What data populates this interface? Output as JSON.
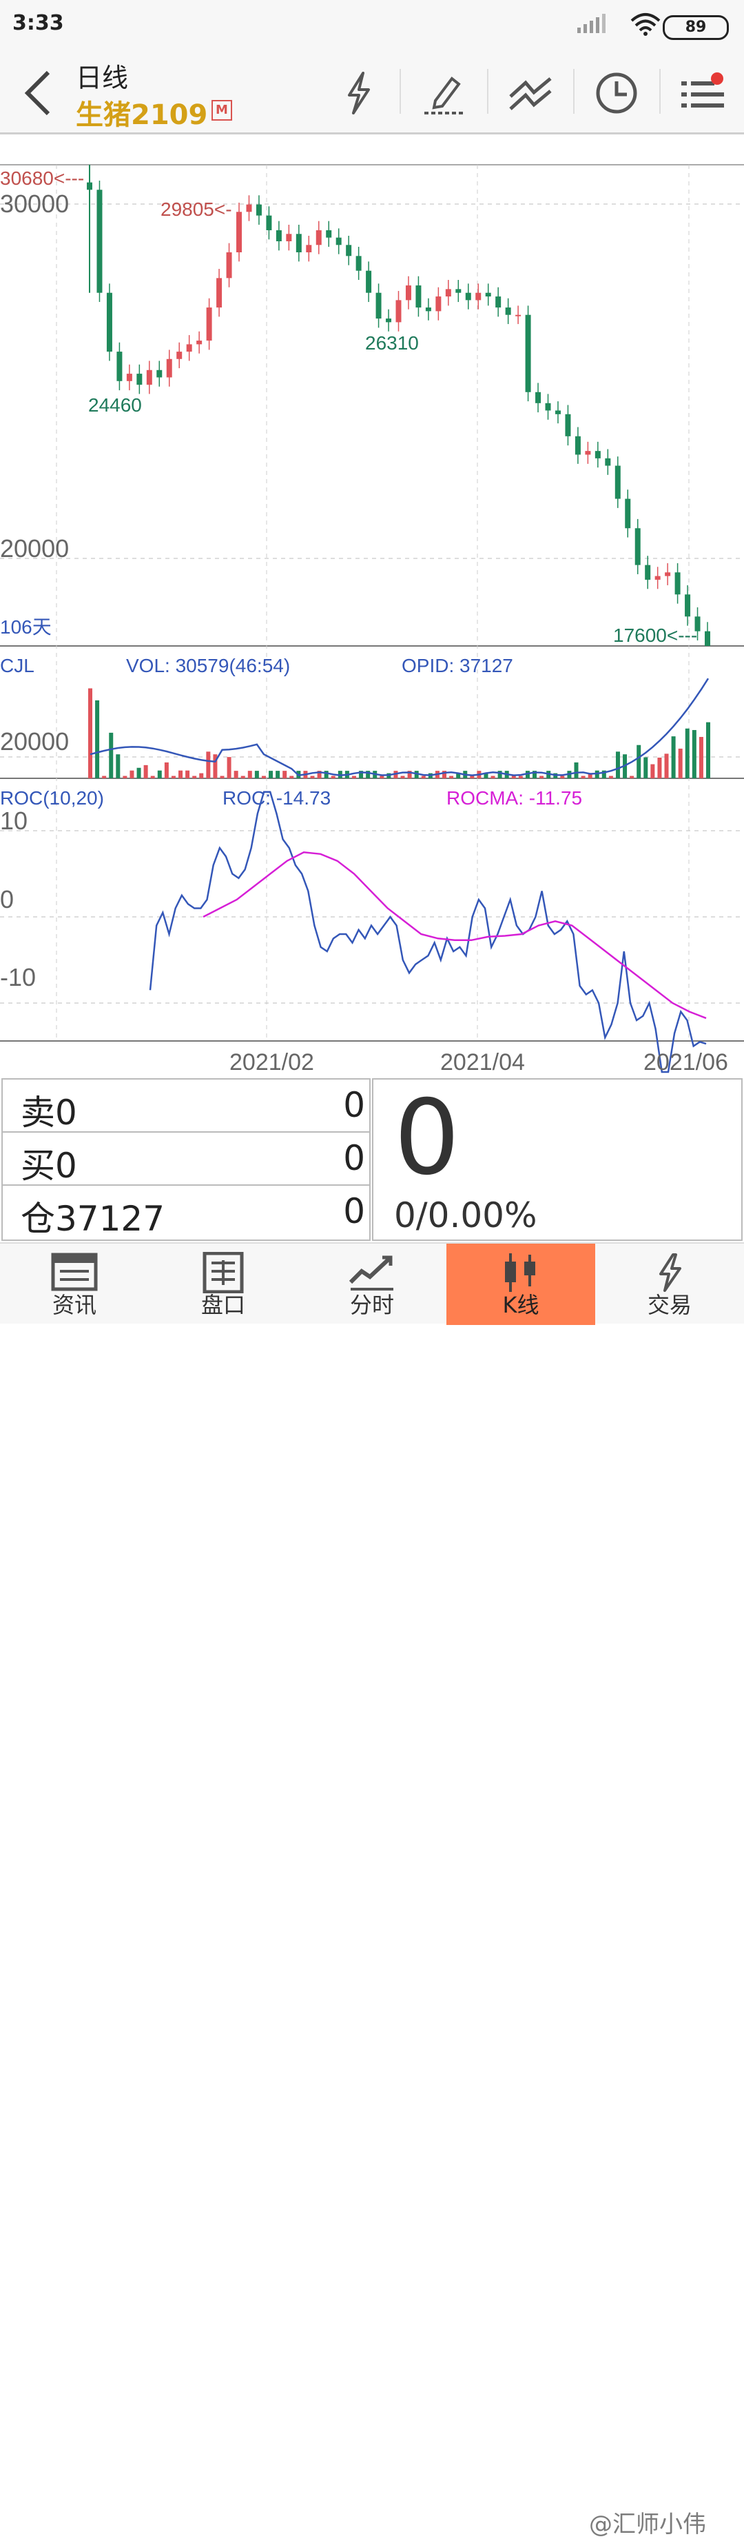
{
  "status": {
    "time": "3:33",
    "battery": "89"
  },
  "nav": {
    "title": "日线",
    "symbol": "生猪2109",
    "badge": "M"
  },
  "chart": {
    "top_marker_label": "30680<---",
    "y_label_30000": "30000",
    "y_label_20000": "20000",
    "peak_label": "29805<-",
    "low1_label": "24460",
    "low2_label": "26310",
    "bottom_marker_label": "17600<---",
    "days_label": "106天",
    "vol_title": "CJL",
    "vol_value": "VOL: 30579(46:54)",
    "opid_value": "OPID: 37127",
    "vol_axis": "20000",
    "roc_title": "ROC(10,20)",
    "roc_value": "ROC: -14.73",
    "rocma_value": "ROCMA: -11.75",
    "roc_axis_10": "10",
    "roc_axis_0": "0",
    "roc_axis_m10": "-10",
    "x_labels": [
      "2021/02",
      "2021/04",
      "2021/06"
    ],
    "colors": {
      "up": "#e0535a",
      "down": "#1f8a5b",
      "roc": "#3457b8",
      "rocma": "#d61fd6",
      "marker": "#c0504d"
    }
  },
  "chart_data": [
    {
      "type": "candlestick",
      "title": "日线 生猪2109",
      "ylim": [
        17600,
        30680
      ],
      "labeled_points": {
        "high": 30680,
        "peak": 29805,
        "low1": 24460,
        "low2": 26310,
        "last_low": 17600
      },
      "closes_approx": [
        30000,
        27200,
        25600,
        24800,
        25000,
        24700,
        25100,
        24900,
        25400,
        25600,
        25800,
        25900,
        26800,
        27600,
        28300,
        29400,
        29600,
        29300,
        28900,
        28600,
        28800,
        28300,
        28500,
        28900,
        28700,
        28500,
        28200,
        27800,
        27200,
        26500,
        26400,
        27000,
        27400,
        26800,
        26700,
        27100,
        27300,
        27200,
        27000,
        27200,
        27100,
        26800,
        26600,
        26600,
        24500,
        24200,
        24000,
        23900,
        23300,
        22800,
        22900,
        22700,
        22500,
        21600,
        20800,
        19800,
        19400,
        19500,
        19600,
        19000,
        18400,
        18000,
        17600
      ]
    },
    {
      "type": "bar",
      "title": "CJL",
      "series": [
        {
          "name": "VOL",
          "last": 30579
        },
        {
          "name": "OPID",
          "last": 37127
        }
      ]
    },
    {
      "type": "line",
      "title": "ROC(10,20)",
      "series": [
        {
          "name": "ROC",
          "last": -14.73,
          "values": [
            -8.5,
            -1,
            0.5,
            -2,
            1,
            2.5,
            1.5,
            1,
            1,
            2,
            6,
            8,
            7,
            5,
            4.5,
            5.5,
            8,
            12,
            14.5,
            14.5,
            12,
            9,
            8,
            6,
            5,
            3,
            -1,
            -3.5,
            -4,
            -2.5,
            -2,
            -2,
            -3,
            -1.5,
            -2.5,
            -1,
            -2,
            -1,
            0,
            -1,
            -5,
            -6.5,
            -5.5,
            -5,
            -4.5,
            -3,
            -5,
            -2.5,
            -4,
            -3.5,
            -4.5,
            0,
            2,
            1,
            -3.5,
            -2,
            0,
            2,
            -1,
            -2,
            -1.5,
            0,
            3,
            -1,
            -2,
            -1.5,
            -0.5,
            -2,
            -8,
            -9,
            -8.5,
            -10,
            -14,
            -12.5,
            -10,
            -4,
            -10,
            -12,
            -11.5,
            -10,
            -13,
            -18,
            -18,
            -13.5,
            -11,
            -12,
            -15,
            -14.5,
            -14.73
          ]
        },
        {
          "name": "ROCMA",
          "last": -11.75,
          "values": [
            0,
            1,
            2,
            3.5,
            5,
            6.5,
            7.5,
            7.3,
            6.5,
            5,
            3,
            1,
            -0.5,
            -2,
            -2.5,
            -2.7,
            -2.7,
            -2.3,
            -2.2,
            -2,
            -1,
            -0.5,
            -1,
            -2.5,
            -4,
            -5.5,
            -7,
            -8.5,
            -10,
            -11,
            -11.75
          ]
        }
      ]
    }
  ],
  "quote": {
    "sell_label": "卖0",
    "sell_value": "0",
    "buy_label": "买0",
    "buy_value": "0",
    "oi_label": "仓37127",
    "oi_value": "0",
    "price": "0",
    "change": "0/0.00%"
  },
  "tabs": [
    "资讯",
    "盘口",
    "分时",
    "K线",
    "交易"
  ],
  "watermark": "@汇师小伟"
}
